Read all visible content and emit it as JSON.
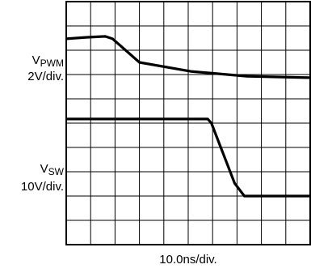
{
  "chart_data": {
    "type": "line",
    "grid": {
      "divisions_x": 10,
      "divisions_y": 10,
      "visible": true
    },
    "x_axis": {
      "label": "10.0ns/div.",
      "unit": "ns",
      "per_div": 10,
      "range": [
        0,
        100
      ]
    },
    "channels": [
      {
        "name_main": "V",
        "name_sub": "PWM",
        "scale": "2V/div.",
        "volts_per_div": 2,
        "points": [
          [
            0,
            1.67
          ],
          [
            8,
            1.73
          ],
          [
            16,
            1.77
          ],
          [
            19,
            1.67
          ],
          [
            30,
            0.7
          ],
          [
            51,
            0.33
          ],
          [
            74,
            0.13
          ],
          [
            100,
            0.07
          ]
        ],
        "unit": "div",
        "color": "#000000"
      },
      {
        "name_main": "V",
        "name_sub": "SW",
        "scale": "10V/div.",
        "volts_per_div": 10,
        "points": [
          [
            0,
            3.17
          ],
          [
            58,
            3.17
          ],
          [
            59.5,
            3.0
          ],
          [
            69,
            0.53
          ],
          [
            73,
            0.0
          ],
          [
            100,
            0.0
          ]
        ],
        "unit": "div",
        "color": "#000000"
      }
    ],
    "reference_levels_div_from_top": [
      3.2,
      8.0
    ]
  }
}
